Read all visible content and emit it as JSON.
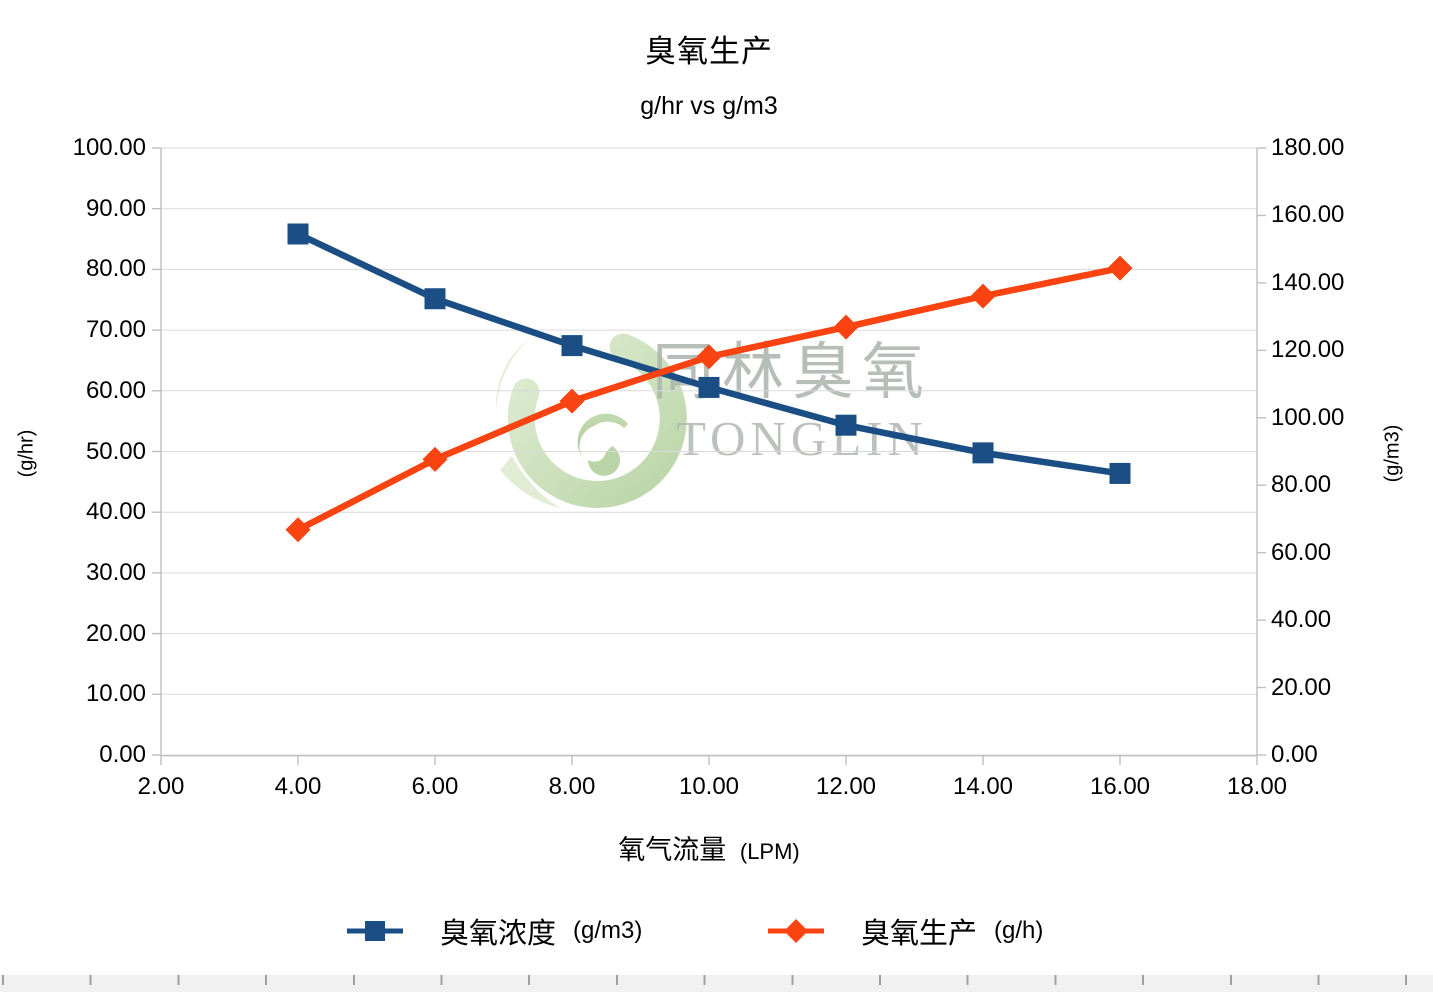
{
  "title": "臭氧生产",
  "subtitle": "g/hr vs g/m3",
  "watermark": {
    "cn": "同林臭氧",
    "en": "TONGLIN"
  },
  "axes": {
    "x": {
      "title_cn": "氧气流量",
      "title_unit": "(LPM)",
      "ticks": [
        "2.00",
        "4.00",
        "6.00",
        "8.00",
        "10.00",
        "12.00",
        "14.00",
        "16.00",
        "18.00"
      ]
    },
    "left": {
      "title": "(g/hr)",
      "ticks": [
        "100.00",
        "90.00",
        "80.00",
        "70.00",
        "60.00",
        "50.00",
        "40.00",
        "30.00",
        "20.00",
        "10.00",
        "0.00"
      ]
    },
    "right": {
      "title": "(g/m3)",
      "ticks": [
        "180.00",
        "160.00",
        "140.00",
        "120.00",
        "100.00",
        "80.00",
        "60.00",
        "40.00",
        "20.00",
        "0.00"
      ]
    }
  },
  "legend": [
    {
      "label": "臭氧浓度",
      "unit": "(g/m3)",
      "marker": "square",
      "color": "#1a4e84"
    },
    {
      "label": "臭氧生产",
      "unit": "(g/h)",
      "marker": "diamond",
      "color": "#f94311"
    }
  ],
  "colors": {
    "series_blue": "#1a4e84",
    "series_orange": "#f94311",
    "gridline": "#d9d9d9",
    "axis_line": "#bfbfbf",
    "watermark_green_light": "#cfe3bb",
    "watermark_green_dark": "#8fbb72",
    "watermark_text": "#aab4ab"
  },
  "chart_data": {
    "type": "line",
    "title": "臭氧生产",
    "subtitle": "g/hr vs g/m3",
    "xlabel": "氧气流量 (LPM)",
    "x": [
      4,
      6,
      8,
      10,
      12,
      14,
      16
    ],
    "x_axis": {
      "range": [
        2,
        18
      ],
      "step": 2
    },
    "left_axis": {
      "label": "(g/hr)",
      "range": [
        0,
        100
      ],
      "step": 10
    },
    "right_axis": {
      "label": "(g/m3)",
      "range": [
        0,
        180
      ],
      "step": 20
    },
    "grid": "horizontal",
    "legend_position": "bottom",
    "series": [
      {
        "name": "臭氧浓度 (g/m3)",
        "axis": "right",
        "marker": "square",
        "color": "#1a4e84",
        "values": [
          154.5,
          135.3,
          121.4,
          109.0,
          97.8,
          89.6,
          83.5
        ]
      },
      {
        "name": "臭氧生产 (g/h)",
        "axis": "left",
        "marker": "diamond",
        "color": "#f94311",
        "values": [
          37.1,
          48.7,
          58.3,
          65.6,
          70.5,
          75.6,
          80.2
        ]
      }
    ]
  }
}
